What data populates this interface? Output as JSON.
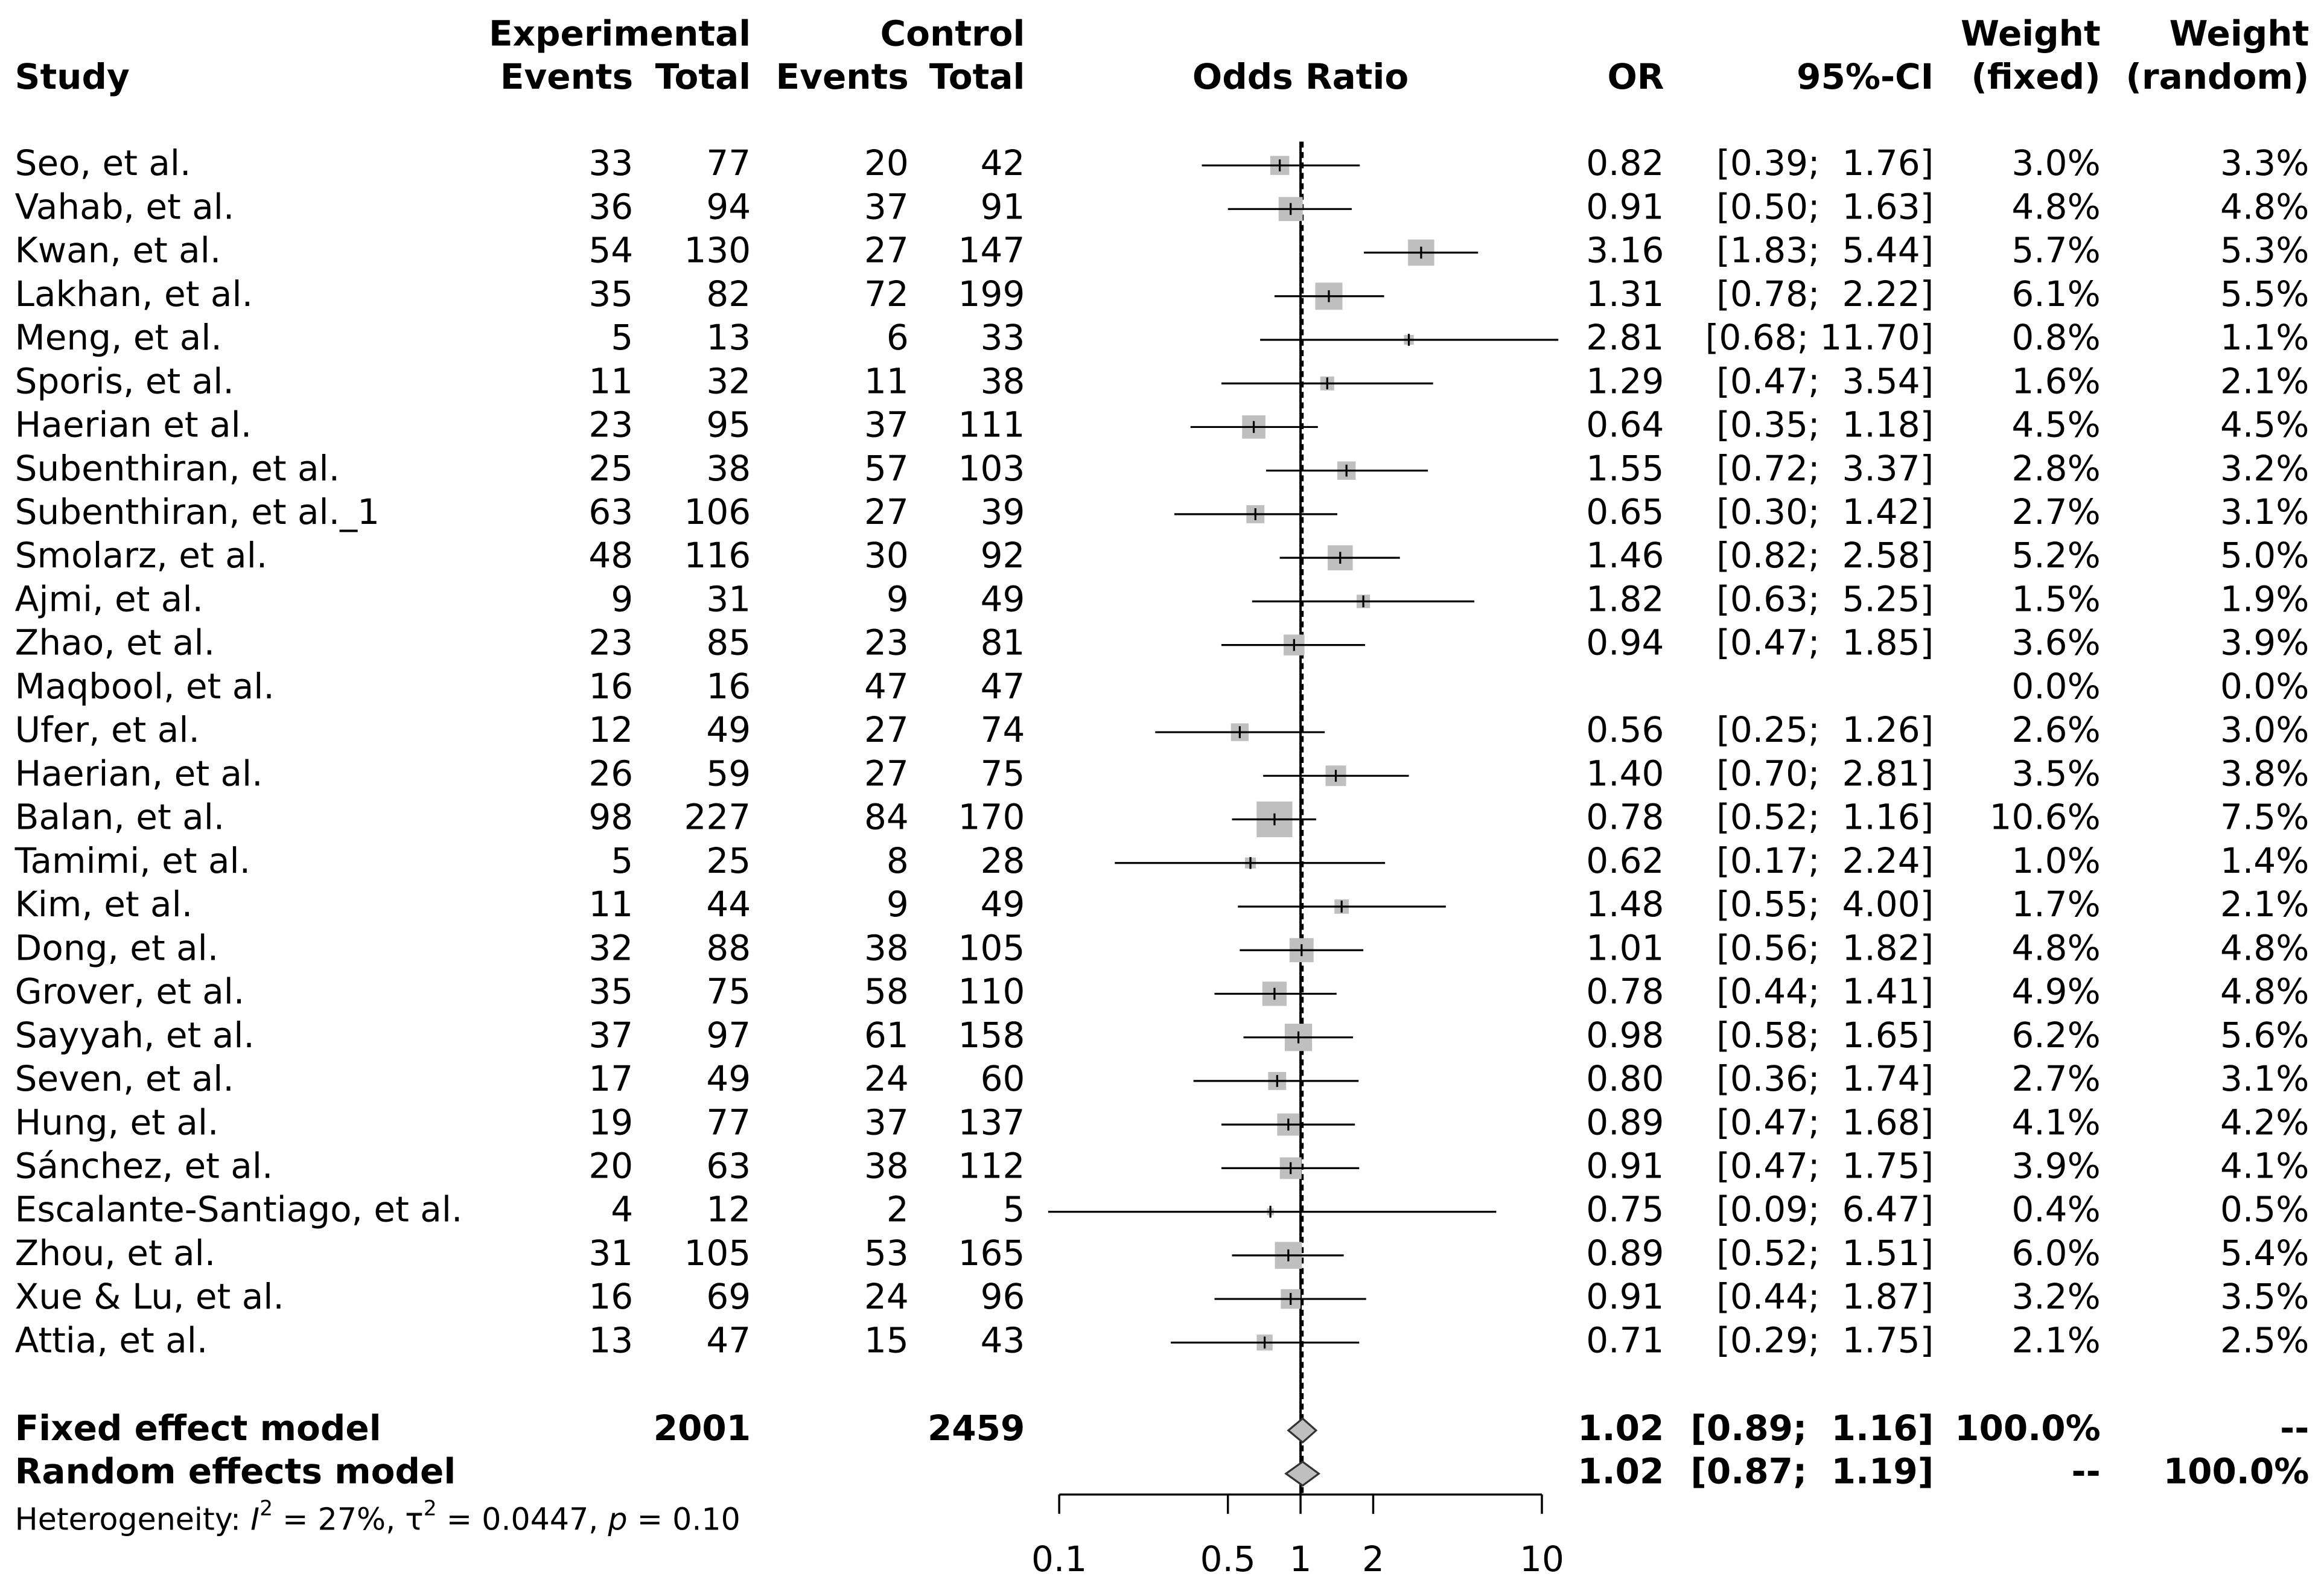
{
  "chart_data": {
    "type": "forest",
    "headers": {
      "study": "Study",
      "experimental": "Experimental",
      "control": "Control",
      "exp_events": "Events",
      "exp_total": "Total",
      "ctrl_events": "Events",
      "ctrl_total": "Total",
      "plot": "Odds Ratio",
      "or": "OR",
      "ci": "95%-CI",
      "weight_fixed_top": "Weight",
      "weight_fixed": "(fixed)",
      "weight_random_top": "Weight",
      "weight_random": "(random)"
    },
    "studies": [
      "Seo, et al.",
      "Vahab, et al.",
      "Kwan, et al.",
      "Lakhan, et al.",
      "Meng, et al.",
      "Sporis, et al.",
      "Haerian et al.",
      "Subenthiran, et al.",
      "Subenthiran, et al._1",
      "Smolarz, et al.",
      "Ajmi, et al.",
      "Zhao, et al.",
      "Maqbool, et al.",
      "Ufer, et al.",
      "Haerian, et al.",
      "Balan, et al.",
      "Tamimi, et al.",
      "Kim, et al.",
      "Dong, et al.",
      "Grover, et al.",
      "Sayyah, et al.",
      "Seven, et al.",
      "Hung, et al.",
      "Sánchez, et al.",
      "Escalante-Santiago, et al.",
      "Zhou, et al.",
      "Xue & Lu, et al.",
      "Attia, et al."
    ],
    "exp_events": [
      33,
      36,
      54,
      35,
      5,
      11,
      23,
      25,
      63,
      48,
      9,
      23,
      16,
      12,
      26,
      98,
      5,
      11,
      32,
      35,
      37,
      17,
      19,
      20,
      4,
      31,
      16,
      13
    ],
    "exp_total": [
      77,
      94,
      130,
      82,
      13,
      32,
      95,
      38,
      106,
      116,
      31,
      85,
      16,
      49,
      59,
      227,
      25,
      44,
      88,
      75,
      97,
      49,
      77,
      63,
      12,
      105,
      69,
      47
    ],
    "ctrl_events": [
      20,
      37,
      27,
      72,
      6,
      11,
      37,
      57,
      27,
      30,
      9,
      23,
      47,
      27,
      27,
      84,
      8,
      9,
      38,
      58,
      61,
      24,
      37,
      38,
      2,
      53,
      24,
      15
    ],
    "ctrl_total": [
      42,
      91,
      147,
      199,
      33,
      38,
      111,
      103,
      39,
      92,
      49,
      81,
      47,
      74,
      75,
      170,
      28,
      49,
      105,
      110,
      158,
      60,
      137,
      112,
      5,
      165,
      96,
      43
    ],
    "or": {
      "values": [
        0.82,
        0.91,
        3.16,
        1.31,
        2.81,
        1.29,
        0.64,
        1.55,
        0.65,
        1.46,
        1.82,
        0.94,
        null,
        0.56,
        1.4,
        0.78,
        0.62,
        1.48,
        1.01,
        0.78,
        0.98,
        0.8,
        0.89,
        0.91,
        0.75,
        0.89,
        0.91,
        0.71
      ],
      "value_labels": [
        "0.82",
        "0.91",
        "3.16",
        "1.31",
        "2.81",
        "1.29",
        "0.64",
        "1.55",
        "0.65",
        "1.46",
        "1.82",
        "0.94",
        null,
        "0.56",
        "1.40",
        "0.78",
        "0.62",
        "1.48",
        "1.01",
        "0.78",
        "0.98",
        "0.80",
        "0.89",
        "0.91",
        "0.75",
        "0.89",
        "0.91",
        "0.71"
      ]
    },
    "ci_lower": [
      0.39,
      0.5,
      1.83,
      0.78,
      0.68,
      0.47,
      0.35,
      0.72,
      0.3,
      0.82,
      0.63,
      0.47,
      null,
      0.25,
      0.7,
      0.52,
      0.17,
      0.55,
      0.56,
      0.44,
      0.58,
      0.36,
      0.47,
      0.47,
      0.09,
      0.52,
      0.44,
      0.29
    ],
    "ci_upper": [
      1.76,
      1.63,
      5.44,
      2.22,
      11.7,
      3.54,
      1.18,
      3.37,
      1.42,
      2.58,
      5.25,
      1.85,
      null,
      1.26,
      2.81,
      1.16,
      2.24,
      4.0,
      1.82,
      1.41,
      1.65,
      1.74,
      1.68,
      1.75,
      6.47,
      1.51,
      1.87,
      1.75
    ],
    "ci_labels": [
      "[0.39;  1.76]",
      "[0.50;  1.63]",
      "[1.83;  5.44]",
      "[0.78;  2.22]",
      "[0.68; 11.70]",
      "[0.47;  3.54]",
      "[0.35;  1.18]",
      "[0.72;  3.37]",
      "[0.30;  1.42]",
      "[0.82;  2.58]",
      "[0.63;  5.25]",
      "[0.47;  1.85]",
      null,
      "[0.25;  1.26]",
      "[0.70;  2.81]",
      "[0.52;  1.16]",
      "[0.17;  2.24]",
      "[0.55;  4.00]",
      "[0.56;  1.82]",
      "[0.44;  1.41]",
      "[0.58;  1.65]",
      "[0.36;  1.74]",
      "[0.47;  1.68]",
      "[0.47;  1.75]",
      "[0.09;  6.47]",
      "[0.52;  1.51]",
      "[0.44;  1.87]",
      "[0.29;  1.75]"
    ],
    "weight_fixed": {
      "values": [
        3.0,
        4.8,
        5.7,
        6.1,
        0.8,
        1.6,
        4.5,
        2.8,
        2.7,
        5.2,
        1.5,
        3.6,
        0.0,
        2.6,
        3.5,
        10.6,
        1.0,
        1.7,
        4.8,
        4.9,
        6.2,
        2.7,
        4.1,
        3.9,
        0.4,
        6.0,
        3.2,
        2.1
      ],
      "value_labels": [
        "3.0%",
        "4.8%",
        "5.7%",
        "6.1%",
        "0.8%",
        "1.6%",
        "4.5%",
        "2.8%",
        "2.7%",
        "5.2%",
        "1.5%",
        "3.6%",
        "0.0%",
        "2.6%",
        "3.5%",
        "10.6%",
        "1.0%",
        "1.7%",
        "4.8%",
        "4.9%",
        "6.2%",
        "2.7%",
        "4.1%",
        "3.9%",
        "0.4%",
        "6.0%",
        "3.2%",
        "2.1%"
      ]
    },
    "weight_random": {
      "values": [
        3.3,
        4.8,
        5.3,
        5.5,
        1.1,
        2.1,
        4.5,
        3.2,
        3.1,
        5.0,
        1.9,
        3.9,
        0.0,
        3.0,
        3.8,
        7.5,
        1.4,
        2.1,
        4.8,
        4.8,
        5.6,
        3.1,
        4.2,
        4.1,
        0.5,
        5.4,
        3.5,
        2.5
      ],
      "value_labels": [
        "3.3%",
        "4.8%",
        "5.3%",
        "5.5%",
        "1.1%",
        "2.1%",
        "4.5%",
        "3.2%",
        "3.1%",
        "5.0%",
        "1.9%",
        "3.9%",
        "0.0%",
        "3.0%",
        "3.8%",
        "7.5%",
        "1.4%",
        "2.1%",
        "4.8%",
        "4.8%",
        "5.6%",
        "3.1%",
        "4.2%",
        "4.1%",
        "0.5%",
        "5.4%",
        "3.5%",
        "2.5%"
      ]
    },
    "fixed": {
      "label": "Fixed effect model",
      "exp_total": 2001,
      "ctrl_total": 2459,
      "or": 1.02,
      "or_label": "1.02",
      "ci_lower": 0.89,
      "ci_upper": 1.16,
      "ci_label": "[0.89;  1.16]",
      "weight_fixed": 100.0,
      "weight_fixed_label": "100.0%",
      "weight_random_label": "--"
    },
    "random": {
      "label": "Random effects model",
      "or": 1.02,
      "or_label": "1.02",
      "ci_lower": 0.87,
      "ci_upper": 1.19,
      "ci_label": "[0.87;  1.19]",
      "weight_fixed_label": "--",
      "weight_random": 100.0,
      "weight_random_label": "100.0%"
    },
    "heterogeneity": [
      "Heterogeneity: ",
      "I",
      "2",
      " = 27%, τ",
      "2",
      " = 0.0447, ",
      "p",
      " = 0.10"
    ],
    "log_scale": true,
    "xlim": [
      0.1,
      10
    ],
    "xticks": [
      0.1,
      0.5,
      1,
      2,
      10
    ],
    "reference_line": 1,
    "square_color": "#bfbfbf"
  }
}
